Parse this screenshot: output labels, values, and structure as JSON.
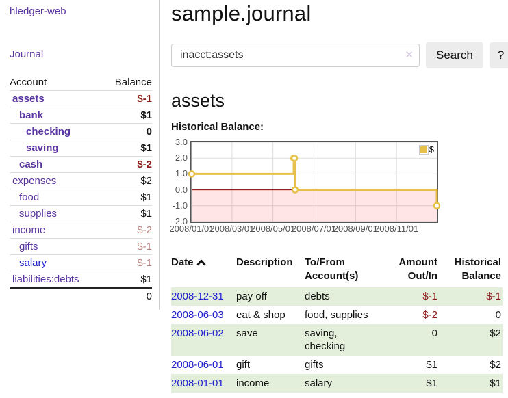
{
  "sidebar": {
    "app_title": "hledger-web",
    "nav": {
      "journal_label": "Journal"
    },
    "accounts": {
      "headers": {
        "account": "Account",
        "balance": "Balance"
      },
      "rows": [
        {
          "name": "assets",
          "balance": "$-1"
        },
        {
          "name": "bank",
          "balance": "$1"
        },
        {
          "name": "checking",
          "balance": "0"
        },
        {
          "name": "saving",
          "balance": "$1"
        },
        {
          "name": "cash",
          "balance": "$-2"
        },
        {
          "name": "expenses",
          "balance": "$2"
        },
        {
          "name": "food",
          "balance": "$1"
        },
        {
          "name": "supplies",
          "balance": "$1"
        },
        {
          "name": "income",
          "balance": "$-2"
        },
        {
          "name": "gifts",
          "balance": "$-1"
        },
        {
          "name": "salary",
          "balance": "$-1"
        },
        {
          "name": "liabilities:debts",
          "balance": "$1"
        }
      ],
      "total": "0"
    }
  },
  "main": {
    "title": "sample.journal",
    "search": {
      "value": "inacct:assets",
      "clear_char": "✕",
      "button_label": "Search",
      "help_label": "?"
    },
    "account_heading": "assets",
    "chart_label": "Historical Balance:"
  },
  "chart_data": {
    "type": "line",
    "step": true,
    "title": "Historical Balance:",
    "series": [
      {
        "name": "$",
        "x": [
          "2008-01-01",
          "2008-06-01",
          "2008-06-02",
          "2008-06-03",
          "2008-12-31"
        ],
        "y": [
          1,
          2,
          2,
          0,
          -1
        ]
      }
    ],
    "xlim": [
      "2008-01-01",
      "2008-12-31"
    ],
    "ylim": [
      -2,
      3
    ],
    "yticks": [
      "3.0",
      "2.0",
      "1.0",
      "0.0",
      "-1.0",
      "-2.0"
    ],
    "xticks": [
      "2008/01/01",
      "2008/03/01",
      "2008/05/01",
      "2008/07/01",
      "2008/09/01",
      "2008/11/01"
    ],
    "legend": {
      "label": "$",
      "position": "top-right"
    },
    "grid": true,
    "negative_region_shaded": true,
    "line_color": "#e6c04a",
    "zero_line_color": "#8b0000"
  },
  "register": {
    "headers": [
      "Date",
      "Description",
      "To/From Account(s)",
      "Amount Out/In",
      "Historical Balance"
    ],
    "sort_icon": "chevron-up-icon",
    "rows": [
      {
        "date": "2008-12-31",
        "description": "pay off",
        "accounts": "debts",
        "amount": "$-1",
        "balance": "$-1"
      },
      {
        "date": "2008-06-03",
        "description": "eat & shop",
        "accounts": "food, supplies",
        "amount": "$-2",
        "balance": "0"
      },
      {
        "date": "2008-06-02",
        "description": "save",
        "accounts": "saving, checking",
        "amount": "0",
        "balance": "$2"
      },
      {
        "date": "2008-06-01",
        "description": "gift",
        "accounts": "gifts",
        "amount": "$1",
        "balance": "$2"
      },
      {
        "date": "2008-01-01",
        "description": "income",
        "accounts": "salary",
        "amount": "$1",
        "balance": "$1"
      }
    ]
  },
  "colors": {
    "accent_purple": "#5a35a0",
    "link_blue": "#2222cc",
    "negative_strong": "#8b1a1a",
    "negative_muted": "#b97e7e",
    "row_stripe_green": "#e3efdb",
    "chart_line": "#e6c04a",
    "chart_zero_line": "#8b0000",
    "chart_negative_fill": "rgba(255,0,0,0.10)"
  }
}
